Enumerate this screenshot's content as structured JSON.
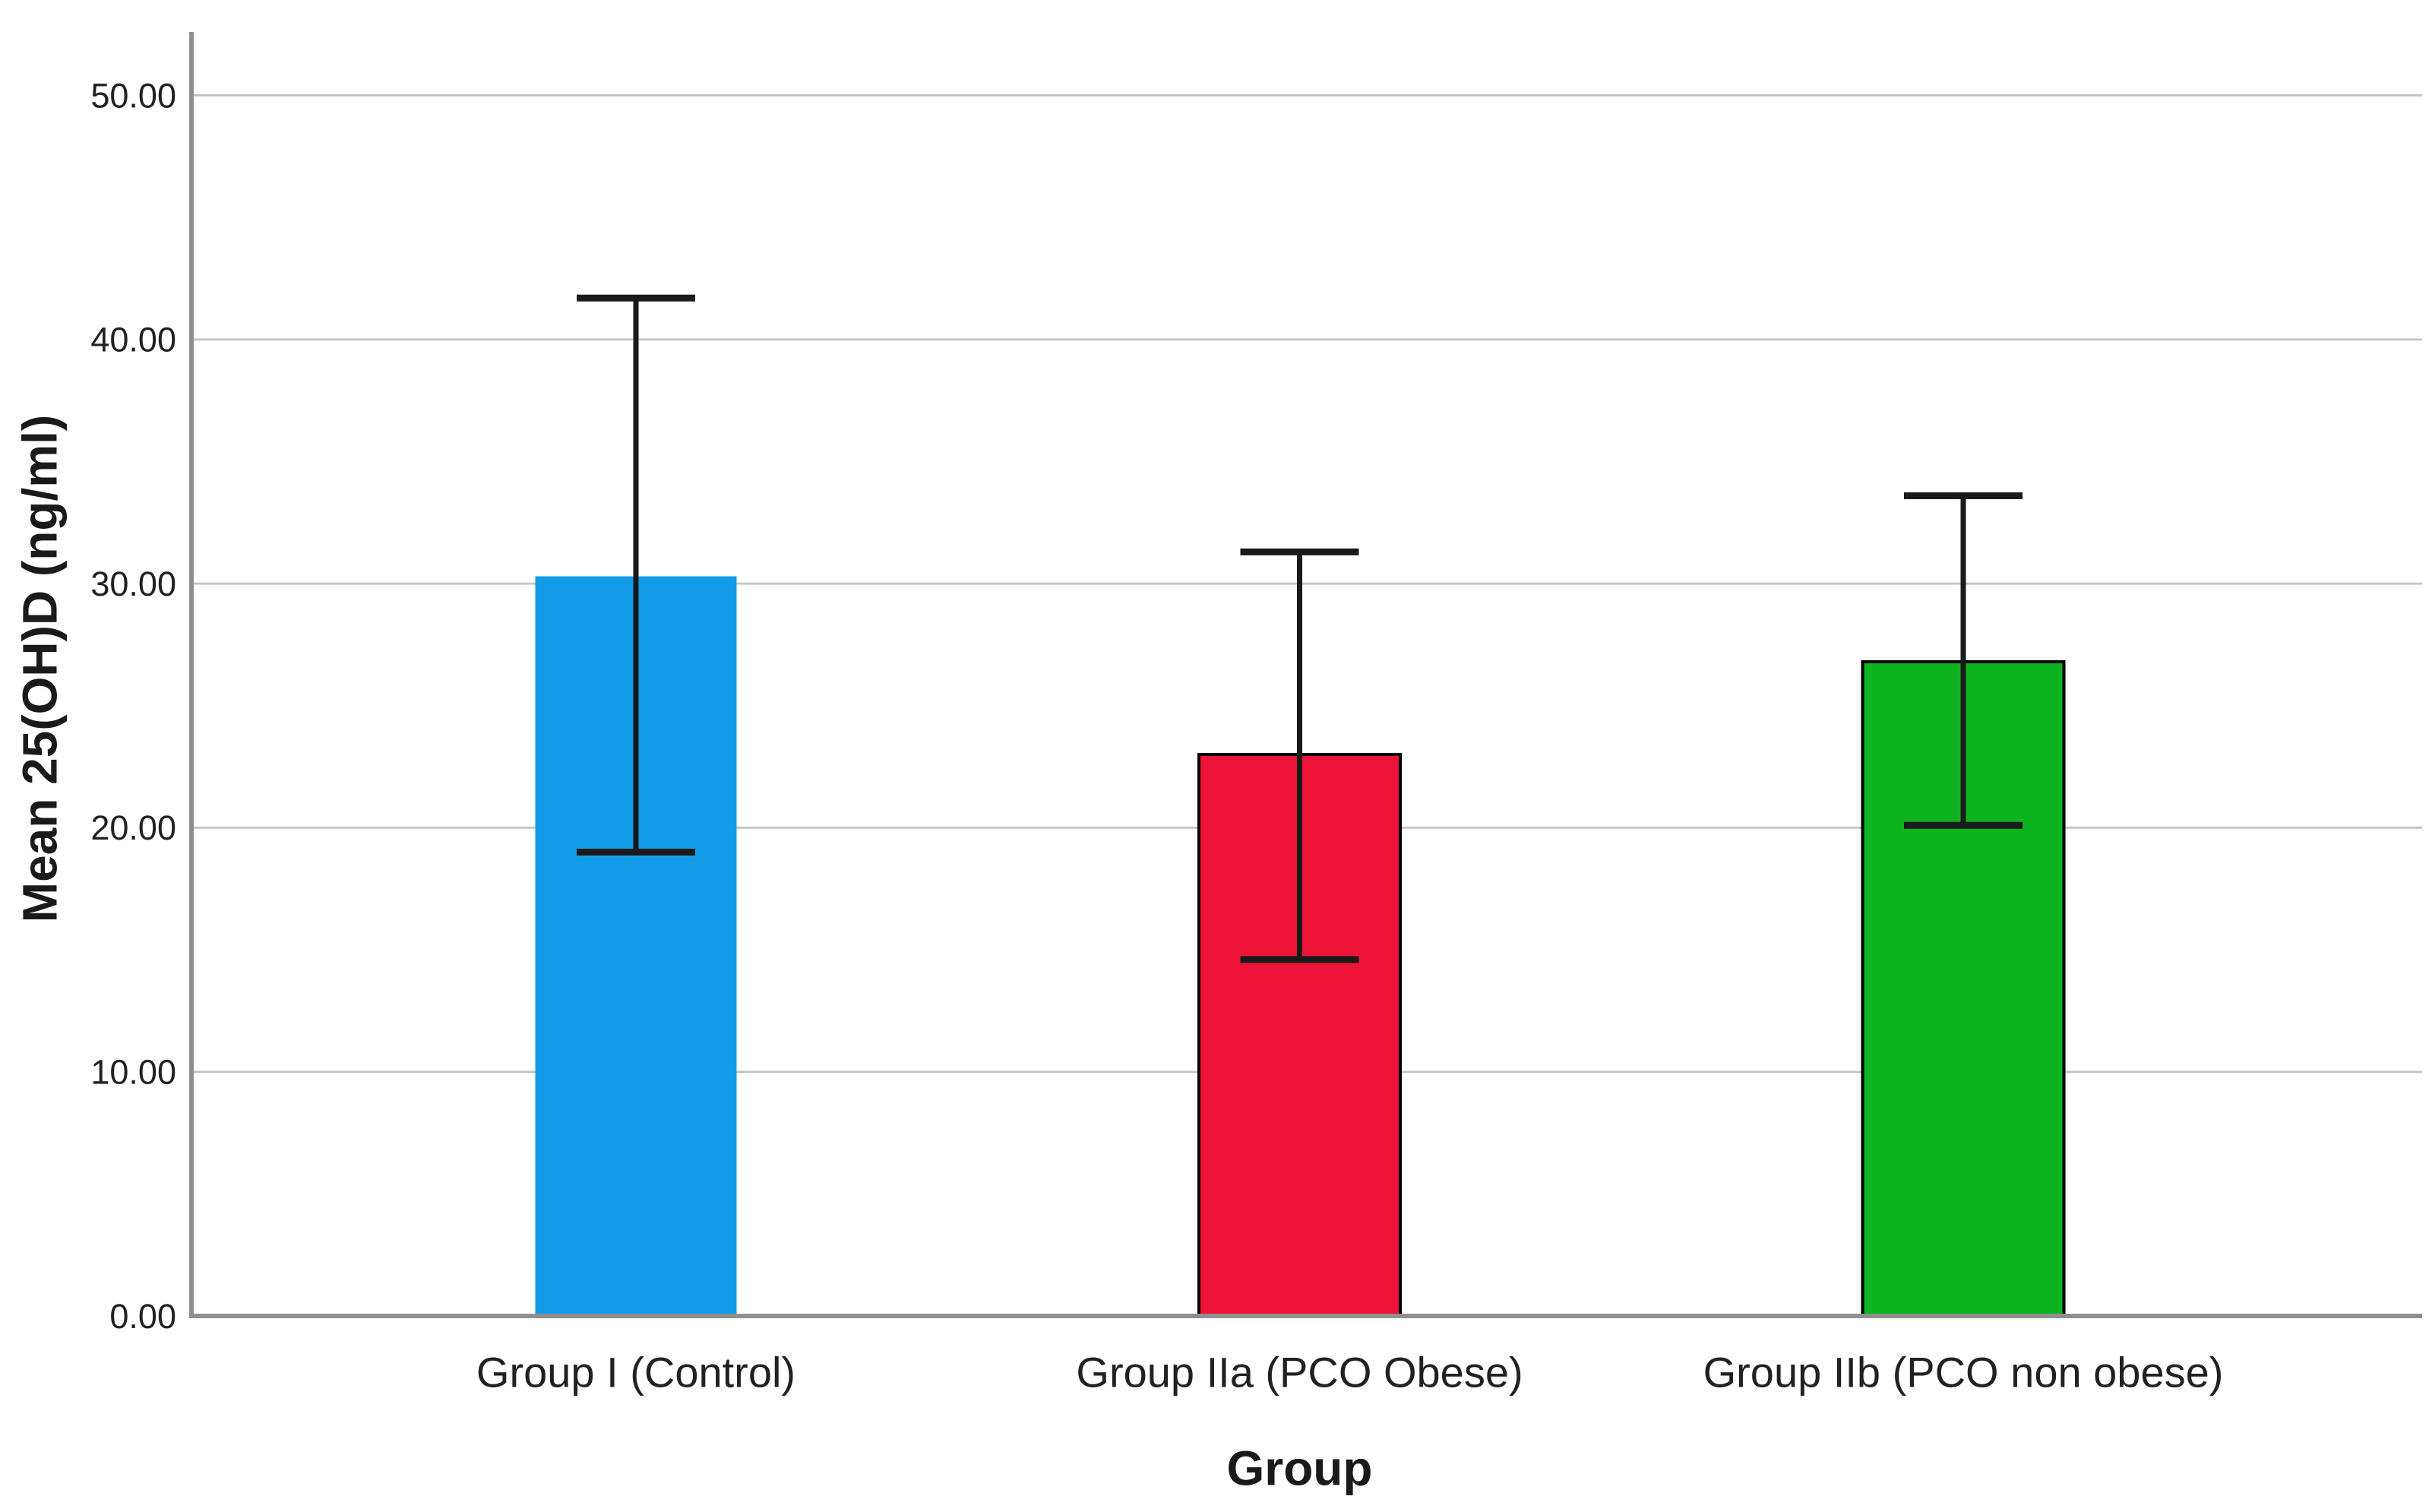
{
  "chart_data": {
    "type": "bar",
    "title": "",
    "xlabel": "Group",
    "ylabel": "Mean 25(OH)D (ng/ml)",
    "categories": [
      "Group I (Control)",
      "Group IIa (PCO Obese)",
      "Group IIb (PCO non obese)"
    ],
    "series": [
      {
        "name": "Mean 25(OH)D (ng/ml)",
        "values": [
          30.3,
          23.0,
          26.8
        ],
        "error_upper": [
          41.7,
          31.3,
          33.6
        ],
        "error_lower": [
          19.0,
          14.6,
          20.1
        ]
      }
    ],
    "bar_colors": [
      "#129CE8",
      "#ED1437",
      "#0EB320"
    ],
    "bar_border_colors": [
      "none",
      "#000000",
      "#000000"
    ],
    "yticks": [
      0,
      10,
      20,
      30,
      40,
      50
    ],
    "ytick_labels": [
      "0.00",
      "10.00",
      "20.00",
      "30.00",
      "40.00",
      "50.00"
    ],
    "ylim": [
      0,
      52.6
    ],
    "grid": true,
    "legend": "none",
    "colors": {
      "error_bar": "#1a1a1a",
      "gridline": "#c6c6c6",
      "axis_line": "#8f8f8f",
      "tick_text": "#212121",
      "label_text": "#1a1a1a"
    }
  }
}
